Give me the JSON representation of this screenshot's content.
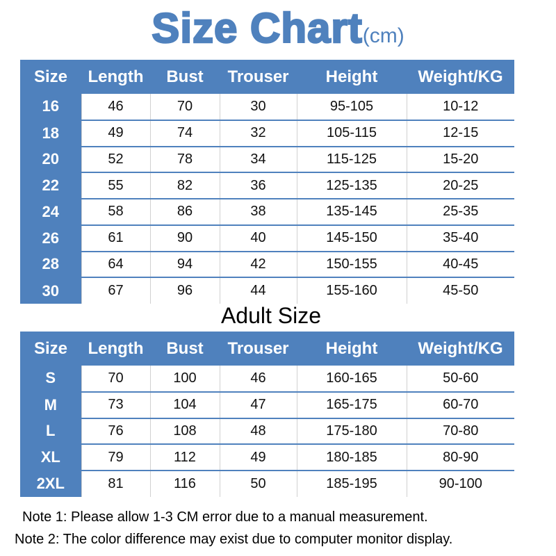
{
  "title": {
    "main": "Size Chart",
    "unit": "(cm)"
  },
  "colors": {
    "accent": "#4f81bd"
  },
  "headers": [
    "Size",
    "Length",
    "Bust",
    "Trouser",
    "Height",
    "Weight/KG"
  ],
  "kids_table": {
    "rows": [
      [
        "16",
        "46",
        "70",
        "30",
        "95-105",
        "10-12"
      ],
      [
        "18",
        "49",
        "74",
        "32",
        "105-115",
        "12-15"
      ],
      [
        "20",
        "52",
        "78",
        "34",
        "115-125",
        "15-20"
      ],
      [
        "22",
        "55",
        "82",
        "36",
        "125-135",
        "20-25"
      ],
      [
        "24",
        "58",
        "86",
        "38",
        "135-145",
        "25-35"
      ],
      [
        "26",
        "61",
        "90",
        "40",
        "145-150",
        "35-40"
      ],
      [
        "28",
        "64",
        "94",
        "42",
        "150-155",
        "40-45"
      ],
      [
        "30",
        "67",
        "96",
        "44",
        "155-160",
        "45-50"
      ]
    ]
  },
  "adult_section_title": "Adult Size",
  "adult_table": {
    "rows": [
      [
        "S",
        "70",
        "100",
        "46",
        "160-165",
        "50-60"
      ],
      [
        "M",
        "73",
        "104",
        "47",
        "165-175",
        "60-70"
      ],
      [
        "L",
        "76",
        "108",
        "48",
        "175-180",
        "70-80"
      ],
      [
        "XL",
        "79",
        "112",
        "49",
        "180-185",
        "80-90"
      ],
      [
        "2XL",
        "81",
        "116",
        "50",
        "185-195",
        "90-100"
      ]
    ]
  },
  "notes": [
    "Note 1: Please allow 1-3 CM error due to a manual measurement.",
    "Note 2: The color difference may exist due to computer monitor display."
  ]
}
